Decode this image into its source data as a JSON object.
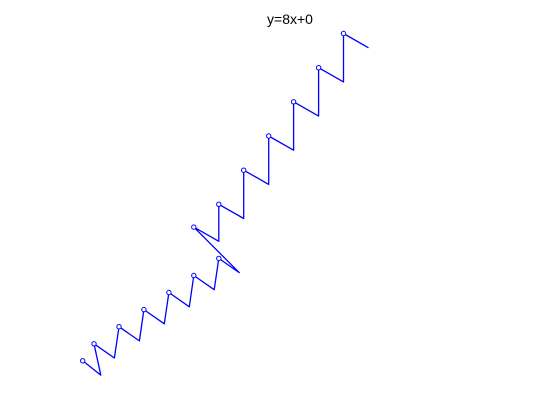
{
  "chart_data": {
    "type": "line",
    "title": "y=8x+0",
    "xlabel": "",
    "ylabel": "",
    "grid": false,
    "axes_visible": false,
    "line_color": "#0000ff",
    "marker": "circle",
    "xlim": [
      -4.5,
      5.2
    ],
    "ylim": [
      -30,
      35
    ],
    "series": [
      {
        "values": [
          [
            -4.0,
            -24.0
          ],
          [
            -3.6,
            -26.5
          ],
          [
            -3.75,
            -21.0
          ],
          [
            -3.3,
            -23.5
          ],
          [
            -3.2,
            -18.0
          ],
          [
            -2.75,
            -20.5
          ],
          [
            -2.65,
            -15.0
          ],
          [
            -2.2,
            -17.5
          ],
          [
            -2.1,
            -12.0
          ],
          [
            -1.65,
            -14.5
          ],
          [
            -1.55,
            -9.0
          ],
          [
            -1.1,
            -11.5
          ],
          [
            -1.0,
            -6.0
          ],
          [
            -0.55,
            -8.5
          ],
          [
            -1.55,
            -0.5
          ],
          [
            -1.0,
            -3.0
          ],
          [
            -1.0,
            3.5
          ],
          [
            -0.45,
            1.0
          ],
          [
            -0.45,
            9.5
          ],
          [
            0.1,
            7.0
          ],
          [
            0.1,
            15.5
          ],
          [
            0.65,
            13.0
          ],
          [
            0.65,
            21.5
          ],
          [
            1.2,
            19.0
          ],
          [
            1.2,
            27.5
          ],
          [
            1.75,
            25.0
          ],
          [
            1.75,
            33.5
          ],
          [
            2.3,
            31.0
          ]
        ]
      }
    ]
  }
}
